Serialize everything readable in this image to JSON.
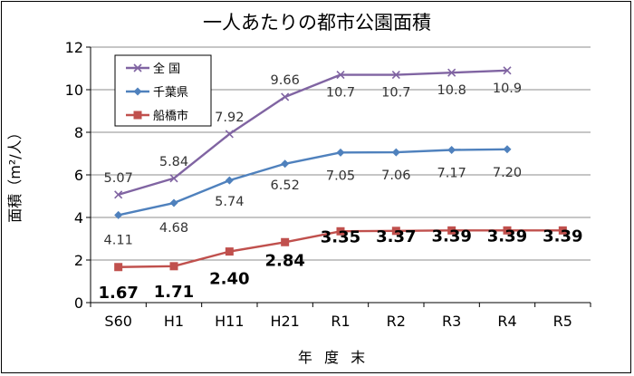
{
  "chart_data": {
    "type": "line",
    "title": "一人あたりの都市公園面積",
    "xlabel": "年 度 末",
    "ylabel": "面積（m²/人）",
    "ylim": [
      0,
      12
    ],
    "yticks": [
      0,
      2,
      4,
      6,
      8,
      10,
      12
    ],
    "categories": [
      "S60",
      "H1",
      "H11",
      "H21",
      "R1",
      "R2",
      "R3",
      "R4",
      "R5"
    ],
    "grid": true,
    "legend_position": "top-left",
    "series": [
      {
        "name": "全 国",
        "color": "#8064a2",
        "marker": "x",
        "values": [
          5.07,
          5.84,
          7.92,
          9.66,
          10.7,
          10.7,
          10.8,
          10.9,
          null
        ],
        "labels": [
          "5.07",
          "5.84",
          "7.92",
          "9.66",
          "10.7",
          "10.7",
          "10.8",
          "10.9",
          null
        ]
      },
      {
        "name": "千葉県",
        "color": "#4f81bd",
        "marker": "diamond",
        "values": [
          4.11,
          4.68,
          5.74,
          6.52,
          7.05,
          7.06,
          7.17,
          7.2,
          null
        ],
        "labels": [
          "4.11",
          "4.68",
          "5.74",
          "6.52",
          "7.05",
          "7.06",
          "7.17",
          "7.20",
          null
        ]
      },
      {
        "name": "船橋市",
        "color": "#c0504d",
        "marker": "square",
        "values": [
          1.67,
          1.71,
          2.4,
          2.84,
          3.35,
          3.37,
          3.39,
          3.39,
          3.39
        ],
        "labels": [
          "1.67",
          "1.71",
          "2.40",
          "2.84",
          "3.35",
          "3.37",
          "3.39",
          "3.39",
          "3.39"
        ]
      }
    ]
  }
}
